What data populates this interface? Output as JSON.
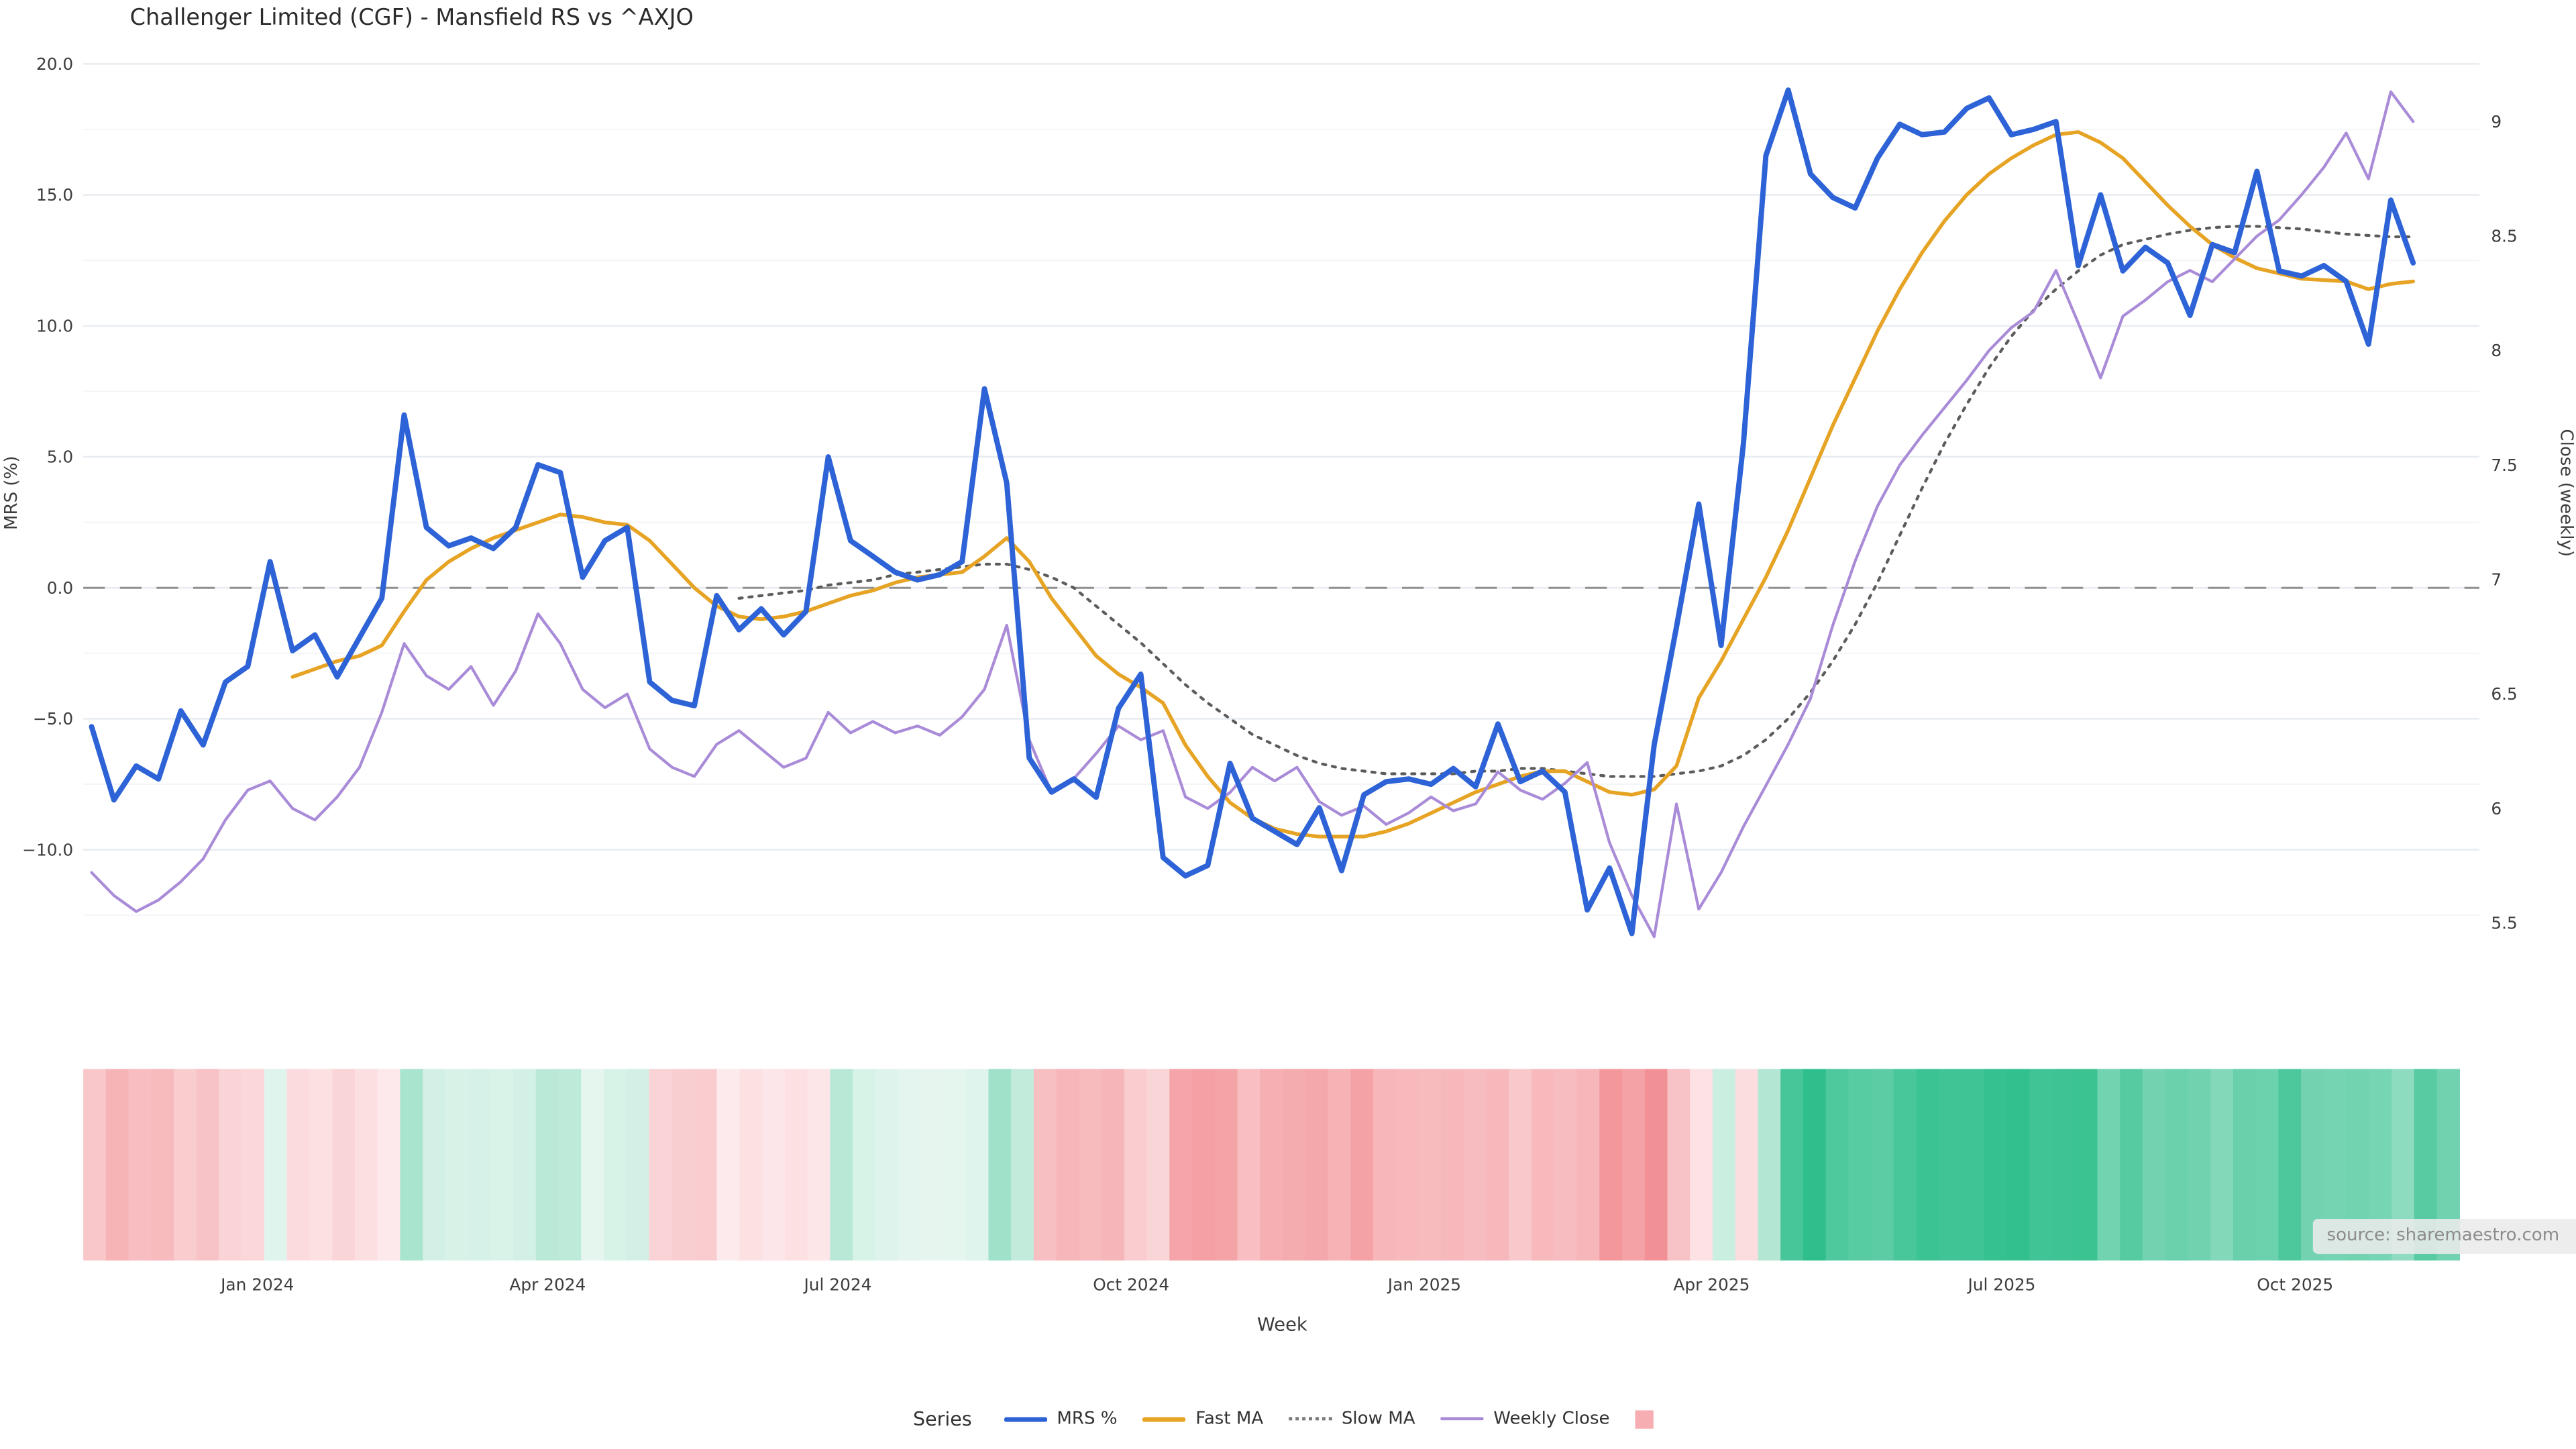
{
  "title": "Challenger Limited (CGF) - Mansfield RS vs ^AXJO",
  "source_note": "source: sharemaestro.com",
  "legend": {
    "title": "Series",
    "items": [
      {
        "label": "MRS %",
        "swatch": "line",
        "color": "#2d63d6"
      },
      {
        "label": "Fast MA",
        "swatch": "line",
        "color": "#e6a324"
      },
      {
        "label": "Slow MA",
        "swatch": "dotted",
        "color": "#7c7c7c"
      },
      {
        "label": "Weekly Close",
        "swatch": "line",
        "color": "#a98bd8"
      },
      {
        "label": "",
        "swatch": "square",
        "color": "#f7aeb2"
      }
    ]
  },
  "chart_data": {
    "type": "line",
    "title": "Challenger Limited (CGF) - Mansfield RS vs ^AXJO",
    "xlabel": "Week",
    "ylabel_left": "MRS (%)",
    "ylabel_right": "Close (weekly)",
    "x": {
      "start_date": "2023-11-10",
      "interval": "weekly",
      "count": 105,
      "end_date": "2025-11-07"
    },
    "x_ticks": [
      {
        "label": "Jan 2024",
        "week": 7.43
      },
      {
        "label": "Apr 2024",
        "week": 20.43
      },
      {
        "label": "Jul 2024",
        "week": 33.43
      },
      {
        "label": "Oct 2024",
        "week": 46.57
      },
      {
        "label": "Jan 2025",
        "week": 59.71
      },
      {
        "label": "Apr 2025",
        "week": 72.57
      },
      {
        "label": "Jul 2025",
        "week": 85.57
      },
      {
        "label": "Oct 2025",
        "week": 98.71
      }
    ],
    "left_axis": {
      "ticks": [
        {
          "label": "20.0",
          "v": 20
        },
        {
          "label": "15.0",
          "v": 15
        },
        {
          "label": "10.0",
          "v": 10
        },
        {
          "label": "5.0",
          "v": 5
        },
        {
          "label": "0.0",
          "v": 0
        },
        {
          "label": "−5.0",
          "v": -5
        },
        {
          "label": "−10.0",
          "v": -10
        }
      ],
      "minor": [
        17.5,
        12.5,
        7.5,
        2.5,
        -2.5,
        -7.5,
        -12.5
      ],
      "zero_line_dashed": true
    },
    "right_axis": {
      "ticks": [
        {
          "label": "9",
          "v": 9
        },
        {
          "label": "8.5",
          "v": 8.5
        },
        {
          "label": "8",
          "v": 8
        },
        {
          "label": "7.5",
          "v": 7.5
        },
        {
          "label": "7",
          "v": 7
        },
        {
          "label": "6.5",
          "v": 6.5
        },
        {
          "label": "6",
          "v": 6
        },
        {
          "label": "5.5",
          "v": 5.5
        }
      ]
    },
    "grid": true,
    "legend_position": "bottom",
    "series": [
      {
        "name": "MRS %",
        "axis": "left",
        "color": "#2d63d6",
        "width": 3.2,
        "style": "solid",
        "values": [
          -5.3,
          -8.1,
          -6.8,
          -7.3,
          -4.7,
          -6.0,
          -3.6,
          -3.0,
          1.0,
          -2.4,
          -1.8,
          -3.4,
          -1.9,
          -0.4,
          6.6,
          2.3,
          1.6,
          1.9,
          1.5,
          2.3,
          4.7,
          4.4,
          0.4,
          1.8,
          2.3,
          -3.6,
          -4.3,
          -4.5,
          -0.3,
          -1.6,
          -0.8,
          -1.8,
          -0.9,
          5.0,
          1.8,
          1.2,
          0.6,
          0.3,
          0.5,
          1.0,
          7.6,
          4.0,
          -6.5,
          -7.8,
          -7.3,
          -8.0,
          -4.6,
          -3.3,
          -10.3,
          -11.0,
          -10.6,
          -6.7,
          -8.8,
          -9.3,
          -9.8,
          -8.4,
          -10.8,
          -7.9,
          -7.4,
          -7.3,
          -7.5,
          -6.9,
          -7.6,
          -5.2,
          -7.4,
          -7.0,
          -7.8,
          -12.3,
          -10.7,
          -13.2,
          -6.0,
          -1.5,
          3.2,
          -2.2,
          5.5,
          16.5,
          19.0,
          15.8,
          14.9,
          14.5,
          16.4,
          17.7,
          17.3,
          17.4,
          18.3,
          18.7,
          17.3,
          17.5,
          17.8,
          12.3,
          15.0,
          12.1,
          13.0,
          12.4,
          10.4,
          13.1,
          12.8,
          15.9,
          12.1,
          11.9,
          12.3,
          11.7,
          9.3,
          14.8,
          12.4
        ]
      },
      {
        "name": "Fast MA",
        "axis": "left",
        "color": "#e6a324",
        "width": 2.2,
        "style": "solid",
        "values": [
          null,
          null,
          null,
          null,
          null,
          null,
          null,
          null,
          null,
          -3.4,
          -3.1,
          -2.8,
          -2.6,
          -2.2,
          -0.9,
          0.3,
          1.0,
          1.5,
          1.9,
          2.2,
          2.5,
          2.8,
          2.7,
          2.5,
          2.4,
          1.8,
          0.9,
          0.0,
          -0.7,
          -1.1,
          -1.2,
          -1.1,
          -0.9,
          -0.6,
          -0.3,
          -0.1,
          0.2,
          0.4,
          0.5,
          0.6,
          1.2,
          1.9,
          1.0,
          -0.4,
          -1.5,
          -2.6,
          -3.3,
          -3.8,
          -4.4,
          -6.0,
          -7.2,
          -8.2,
          -8.8,
          -9.2,
          -9.4,
          -9.5,
          -9.5,
          -9.5,
          -9.3,
          -9.0,
          -8.6,
          -8.2,
          -7.8,
          -7.5,
          -7.2,
          -7.0,
          -7.0,
          -7.4,
          -7.8,
          -7.9,
          -7.7,
          -6.8,
          -4.2,
          -2.8,
          -1.2,
          0.4,
          2.2,
          4.2,
          6.2,
          8.0,
          9.8,
          11.4,
          12.8,
          14.0,
          15.0,
          15.8,
          16.4,
          16.9,
          17.3,
          17.4,
          17.0,
          16.4,
          15.5,
          14.6,
          13.8,
          13.1,
          12.6,
          12.2,
          12.0,
          11.8,
          11.75,
          11.7,
          11.4,
          11.6,
          11.7
        ]
      },
      {
        "name": "Slow MA",
        "axis": "left",
        "color": "#5c5c5c",
        "width": 1.7,
        "style": "dotted",
        "values": [
          null,
          null,
          null,
          null,
          null,
          null,
          null,
          null,
          null,
          null,
          null,
          null,
          null,
          null,
          null,
          null,
          null,
          null,
          null,
          null,
          null,
          null,
          null,
          null,
          null,
          null,
          null,
          null,
          null,
          -0.4,
          -0.3,
          -0.2,
          -0.1,
          0.1,
          0.2,
          0.3,
          0.5,
          0.6,
          0.7,
          0.8,
          0.9,
          0.9,
          0.7,
          0.4,
          0.0,
          -0.7,
          -1.4,
          -2.1,
          -2.9,
          -3.7,
          -4.4,
          -5.0,
          -5.6,
          -6.0,
          -6.4,
          -6.7,
          -6.9,
          -7.0,
          -7.1,
          -7.1,
          -7.1,
          -7.1,
          -7.0,
          -7.0,
          -6.9,
          -6.9,
          -7.0,
          -7.1,
          -7.2,
          -7.2,
          -7.2,
          -7.1,
          -7.0,
          -6.8,
          -6.4,
          -5.8,
          -5.0,
          -4.0,
          -2.8,
          -1.4,
          0.2,
          2.0,
          3.8,
          5.5,
          7.0,
          8.4,
          9.6,
          10.6,
          11.4,
          12.1,
          12.7,
          13.1,
          13.3,
          13.5,
          13.65,
          13.75,
          13.8,
          13.8,
          13.75,
          13.7,
          13.6,
          13.5,
          13.45,
          13.4,
          13.4
        ]
      },
      {
        "name": "Weekly Close",
        "axis": "right",
        "color": "#a98bd8",
        "width": 1.7,
        "style": "solid",
        "values": [
          5.72,
          5.62,
          5.55,
          5.6,
          5.68,
          5.78,
          5.95,
          6.08,
          6.12,
          6.0,
          5.95,
          6.05,
          6.18,
          6.42,
          6.72,
          6.58,
          6.52,
          6.62,
          6.45,
          6.6,
          6.85,
          6.72,
          6.52,
          6.44,
          6.5,
          6.26,
          6.18,
          6.14,
          6.28,
          6.34,
          6.26,
          6.18,
          6.22,
          6.42,
          6.33,
          6.38,
          6.33,
          6.36,
          6.32,
          6.4,
          6.52,
          6.8,
          6.3,
          6.07,
          6.13,
          6.24,
          6.36,
          6.3,
          6.34,
          6.05,
          6.0,
          6.07,
          6.18,
          6.12,
          6.18,
          6.03,
          5.97,
          6.01,
          5.93,
          5.98,
          6.05,
          5.99,
          6.02,
          6.16,
          6.08,
          6.04,
          6.11,
          6.2,
          5.85,
          5.62,
          5.44,
          6.02,
          5.56,
          5.72,
          5.92,
          6.1,
          6.28,
          6.48,
          6.8,
          7.08,
          7.32,
          7.5,
          7.63,
          7.75,
          7.87,
          8.0,
          8.1,
          8.17,
          8.35,
          8.12,
          7.88,
          8.15,
          8.22,
          8.3,
          8.35,
          8.3,
          8.4,
          8.5,
          8.57,
          8.68,
          8.8,
          8.95,
          8.75,
          9.13,
          9.0
        ]
      }
    ],
    "heatmap": {
      "description": "weekly strip colored by MRS % sign and magnitude",
      "neg_low": "#fdecee",
      "neg_high": "#f28f93",
      "neg_max": 13.5,
      "pos_low": "#e9f7f1",
      "pos_high": "#2fbf8c",
      "pos_max": 19
    }
  }
}
